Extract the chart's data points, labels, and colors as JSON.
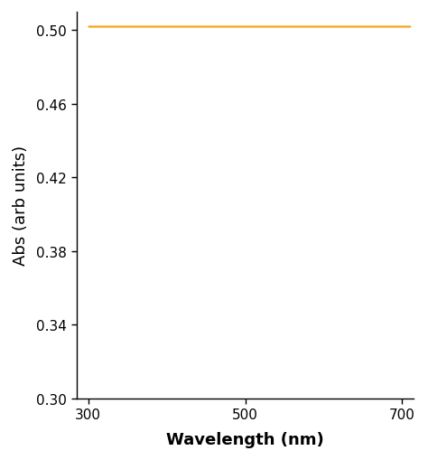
{
  "line_color": "#F5A623",
  "xlabel": "Wavelength (nm)",
  "ylabel": "Abs (arb units)",
  "xlim": [
    285,
    715
  ],
  "ylim": [
    0.3,
    0.51
  ],
  "xticks": [
    300,
    500,
    700
  ],
  "yticks": [
    0.3,
    0.34,
    0.38,
    0.42,
    0.46,
    0.5
  ],
  "xlabel_fontsize": 13,
  "ylabel_fontsize": 13,
  "tick_fontsize": 11,
  "xlabel_fontweight": "bold",
  "ylabel_fontweight": "normal",
  "background_color": "#ffffff",
  "marker_size": 1.2,
  "noise_std": 0.0012
}
